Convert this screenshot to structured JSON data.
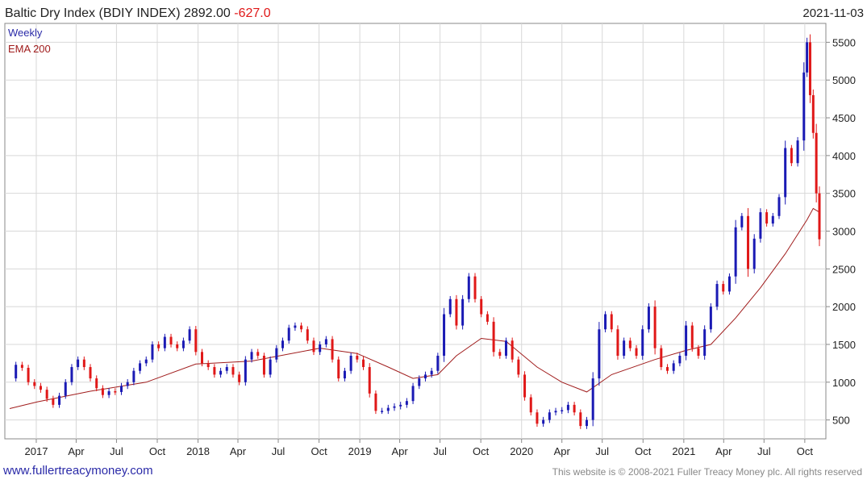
{
  "header": {
    "title": "Baltic Dry Index (BDIY INDEX) 2892.00",
    "change": "-627.0",
    "date": "2021-11-03"
  },
  "legend": {
    "frequency": "Weekly",
    "ema": "EMA 200"
  },
  "footer": {
    "link": "www.fullertreacymoney.com",
    "copyright": "This website is © 2008-2021 Fuller Treacy Money plc. All rights reserved"
  },
  "colors": {
    "up": "#1a1ab4",
    "down": "#e01818",
    "ema": "#a01c1c",
    "grid": "#d8d8d8",
    "legend_weekly": "#2a2aa8",
    "legend_ema": "#a01c1c",
    "change": "#e01818"
  },
  "chart_data": {
    "type": "candlestick",
    "frequency": "weekly",
    "x_start": "2016-11-02",
    "x_end": "2021-11-03",
    "ylim": [
      250,
      5750
    ],
    "grid": true,
    "yticks": [
      500,
      1000,
      1500,
      2000,
      2500,
      3000,
      3500,
      4000,
      4500,
      5000,
      5500
    ],
    "xticks": [
      {
        "label": "2017",
        "date": "2017-01-01"
      },
      {
        "label": "Apr",
        "date": "2017-04-01"
      },
      {
        "label": "Jul",
        "date": "2017-07-01"
      },
      {
        "label": "Oct",
        "date": "2017-10-01"
      },
      {
        "label": "2018",
        "date": "2018-01-01"
      },
      {
        "label": "Apr",
        "date": "2018-04-01"
      },
      {
        "label": "Jul",
        "date": "2018-07-01"
      },
      {
        "label": "Oct",
        "date": "2018-10-01"
      },
      {
        "label": "2019",
        "date": "2019-01-01"
      },
      {
        "label": "Apr",
        "date": "2019-04-01"
      },
      {
        "label": "Jul",
        "date": "2019-07-01"
      },
      {
        "label": "Oct",
        "date": "2019-10-01"
      },
      {
        "label": "2020",
        "date": "2020-01-01"
      },
      {
        "label": "Apr",
        "date": "2020-04-01"
      },
      {
        "label": "Jul",
        "date": "2020-07-01"
      },
      {
        "label": "Oct",
        "date": "2020-10-01"
      },
      {
        "label": "2021",
        "date": "2021-01-01"
      },
      {
        "label": "Apr",
        "date": "2021-04-01"
      },
      {
        "label": "Jul",
        "date": "2021-07-01"
      },
      {
        "label": "Oct",
        "date": "2021-10-01"
      }
    ],
    "weekly_close": [
      {
        "date": "2016-11-02",
        "close": 1050
      },
      {
        "date": "2016-11-16",
        "close": 1230
      },
      {
        "date": "2016-11-30",
        "close": 1190
      },
      {
        "date": "2016-12-14",
        "close": 1000
      },
      {
        "date": "2016-12-28",
        "close": 950
      },
      {
        "date": "2017-01-11",
        "close": 900
      },
      {
        "date": "2017-01-25",
        "close": 780
      },
      {
        "date": "2017-02-08",
        "close": 700
      },
      {
        "date": "2017-02-22",
        "close": 820
      },
      {
        "date": "2017-03-08",
        "close": 1000
      },
      {
        "date": "2017-03-22",
        "close": 1200
      },
      {
        "date": "2017-04-05",
        "close": 1300
      },
      {
        "date": "2017-04-19",
        "close": 1200
      },
      {
        "date": "2017-05-03",
        "close": 1050
      },
      {
        "date": "2017-05-17",
        "close": 920
      },
      {
        "date": "2017-05-31",
        "close": 830
      },
      {
        "date": "2017-06-14",
        "close": 880
      },
      {
        "date": "2017-06-28",
        "close": 870
      },
      {
        "date": "2017-07-12",
        "close": 950
      },
      {
        "date": "2017-07-26",
        "close": 1000
      },
      {
        "date": "2017-08-09",
        "close": 1150
      },
      {
        "date": "2017-08-23",
        "close": 1250
      },
      {
        "date": "2017-09-06",
        "close": 1300
      },
      {
        "date": "2017-09-20",
        "close": 1500
      },
      {
        "date": "2017-10-04",
        "close": 1450
      },
      {
        "date": "2017-10-18",
        "close": 1600
      },
      {
        "date": "2017-11-01",
        "close": 1500
      },
      {
        "date": "2017-11-15",
        "close": 1450
      },
      {
        "date": "2017-11-29",
        "close": 1550
      },
      {
        "date": "2017-12-13",
        "close": 1700
      },
      {
        "date": "2017-12-27",
        "close": 1400
      },
      {
        "date": "2018-01-10",
        "close": 1250
      },
      {
        "date": "2018-01-24",
        "close": 1200
      },
      {
        "date": "2018-02-07",
        "close": 1100
      },
      {
        "date": "2018-02-21",
        "close": 1150
      },
      {
        "date": "2018-03-07",
        "close": 1200
      },
      {
        "date": "2018-03-21",
        "close": 1100
      },
      {
        "date": "2018-04-04",
        "close": 1000
      },
      {
        "date": "2018-04-18",
        "close": 1300
      },
      {
        "date": "2018-05-02",
        "close": 1400
      },
      {
        "date": "2018-05-16",
        "close": 1350
      },
      {
        "date": "2018-05-30",
        "close": 1100
      },
      {
        "date": "2018-06-13",
        "close": 1300
      },
      {
        "date": "2018-06-27",
        "close": 1450
      },
      {
        "date": "2018-07-11",
        "close": 1550
      },
      {
        "date": "2018-07-25",
        "close": 1720
      },
      {
        "date": "2018-08-08",
        "close": 1750
      },
      {
        "date": "2018-08-22",
        "close": 1700
      },
      {
        "date": "2018-09-05",
        "close": 1550
      },
      {
        "date": "2018-09-19",
        "close": 1400
      },
      {
        "date": "2018-10-03",
        "close": 1500
      },
      {
        "date": "2018-10-17",
        "close": 1570
      },
      {
        "date": "2018-10-31",
        "close": 1300
      },
      {
        "date": "2018-11-14",
        "close": 1050
      },
      {
        "date": "2018-11-28",
        "close": 1150
      },
      {
        "date": "2018-12-12",
        "close": 1350
      },
      {
        "date": "2018-12-26",
        "close": 1300
      },
      {
        "date": "2019-01-09",
        "close": 1200
      },
      {
        "date": "2019-01-23",
        "close": 850
      },
      {
        "date": "2019-02-06",
        "close": 620
      },
      {
        "date": "2019-02-20",
        "close": 620
      },
      {
        "date": "2019-03-06",
        "close": 660
      },
      {
        "date": "2019-03-20",
        "close": 680
      },
      {
        "date": "2019-04-03",
        "close": 700
      },
      {
        "date": "2019-04-17",
        "close": 750
      },
      {
        "date": "2019-05-01",
        "close": 950
      },
      {
        "date": "2019-05-15",
        "close": 1050
      },
      {
        "date": "2019-05-29",
        "close": 1100
      },
      {
        "date": "2019-06-12",
        "close": 1150
      },
      {
        "date": "2019-06-26",
        "close": 1350
      },
      {
        "date": "2019-07-10",
        "close": 1900
      },
      {
        "date": "2019-07-24",
        "close": 2100
      },
      {
        "date": "2019-08-07",
        "close": 1750
      },
      {
        "date": "2019-08-21",
        "close": 2100
      },
      {
        "date": "2019-09-04",
        "close": 2400
      },
      {
        "date": "2019-09-18",
        "close": 2100
      },
      {
        "date": "2019-10-02",
        "close": 1900
      },
      {
        "date": "2019-10-16",
        "close": 1800
      },
      {
        "date": "2019-10-30",
        "close": 1400
      },
      {
        "date": "2019-11-13",
        "close": 1350
      },
      {
        "date": "2019-11-27",
        "close": 1550
      },
      {
        "date": "2019-12-11",
        "close": 1300
      },
      {
        "date": "2019-12-25",
        "close": 1100
      },
      {
        "date": "2020-01-08",
        "close": 800
      },
      {
        "date": "2020-01-22",
        "close": 600
      },
      {
        "date": "2020-02-05",
        "close": 450
      },
      {
        "date": "2020-02-19",
        "close": 500
      },
      {
        "date": "2020-03-04",
        "close": 600
      },
      {
        "date": "2020-03-18",
        "close": 620
      },
      {
        "date": "2020-04-01",
        "close": 630
      },
      {
        "date": "2020-04-15",
        "close": 700
      },
      {
        "date": "2020-04-29",
        "close": 600
      },
      {
        "date": "2020-05-13",
        "close": 420
      },
      {
        "date": "2020-05-27",
        "close": 500
      },
      {
        "date": "2020-06-10",
        "close": 1050
      },
      {
        "date": "2020-06-24",
        "close": 1700
      },
      {
        "date": "2020-07-08",
        "close": 1900
      },
      {
        "date": "2020-07-22",
        "close": 1700
      },
      {
        "date": "2020-08-05",
        "close": 1350
      },
      {
        "date": "2020-08-19",
        "close": 1550
      },
      {
        "date": "2020-09-02",
        "close": 1450
      },
      {
        "date": "2020-09-16",
        "close": 1350
      },
      {
        "date": "2020-09-30",
        "close": 1700
      },
      {
        "date": "2020-10-14",
        "close": 2000
      },
      {
        "date": "2020-10-28",
        "close": 1450
      },
      {
        "date": "2020-11-11",
        "close": 1200
      },
      {
        "date": "2020-11-25",
        "close": 1150
      },
      {
        "date": "2020-12-09",
        "close": 1250
      },
      {
        "date": "2020-12-23",
        "close": 1350
      },
      {
        "date": "2021-01-06",
        "close": 1750
      },
      {
        "date": "2021-01-20",
        "close": 1450
      },
      {
        "date": "2021-02-03",
        "close": 1350
      },
      {
        "date": "2021-02-17",
        "close": 1700
      },
      {
        "date": "2021-03-03",
        "close": 2000
      },
      {
        "date": "2021-03-17",
        "close": 2300
      },
      {
        "date": "2021-03-31",
        "close": 2200
      },
      {
        "date": "2021-04-14",
        "close": 2400
      },
      {
        "date": "2021-04-28",
        "close": 3050
      },
      {
        "date": "2021-05-12",
        "close": 3200
      },
      {
        "date": "2021-05-26",
        "close": 2500
      },
      {
        "date": "2021-06-09",
        "close": 2900
      },
      {
        "date": "2021-06-23",
        "close": 3250
      },
      {
        "date": "2021-07-07",
        "close": 3100
      },
      {
        "date": "2021-07-21",
        "close": 3200
      },
      {
        "date": "2021-08-04",
        "close": 3450
      },
      {
        "date": "2021-08-18",
        "close": 4100
      },
      {
        "date": "2021-09-01",
        "close": 3900
      },
      {
        "date": "2021-09-15",
        "close": 4200
      },
      {
        "date": "2021-09-29",
        "close": 5100
      },
      {
        "date": "2021-10-06",
        "close": 5500
      },
      {
        "date": "2021-10-13",
        "close": 4800
      },
      {
        "date": "2021-10-20",
        "close": 4300
      },
      {
        "date": "2021-10-27",
        "close": 3500
      },
      {
        "date": "2021-11-03",
        "close": 2892
      }
    ],
    "ema_200": [
      {
        "date": "2016-11-02",
        "value": 650
      },
      {
        "date": "2017-01-04",
        "value": 740
      },
      {
        "date": "2017-05-03",
        "value": 880
      },
      {
        "date": "2017-09-06",
        "value": 1000
      },
      {
        "date": "2017-12-27",
        "value": 1240
      },
      {
        "date": "2018-05-02",
        "value": 1280
      },
      {
        "date": "2018-10-03",
        "value": 1450
      },
      {
        "date": "2018-12-26",
        "value": 1380
      },
      {
        "date": "2019-03-06",
        "value": 1200
      },
      {
        "date": "2019-05-01",
        "value": 1050
      },
      {
        "date": "2019-06-26",
        "value": 1100
      },
      {
        "date": "2019-08-07",
        "value": 1350
      },
      {
        "date": "2019-10-02",
        "value": 1580
      },
      {
        "date": "2019-11-27",
        "value": 1540
      },
      {
        "date": "2020-02-05",
        "value": 1200
      },
      {
        "date": "2020-04-01",
        "value": 1000
      },
      {
        "date": "2020-05-27",
        "value": 870
      },
      {
        "date": "2020-07-22",
        "value": 1100
      },
      {
        "date": "2020-10-28",
        "value": 1300
      },
      {
        "date": "2021-01-06",
        "value": 1420
      },
      {
        "date": "2021-03-03",
        "value": 1500
      },
      {
        "date": "2021-04-28",
        "value": 1850
      },
      {
        "date": "2021-06-23",
        "value": 2250
      },
      {
        "date": "2021-08-18",
        "value": 2700
      },
      {
        "date": "2021-10-06",
        "value": 3150
      },
      {
        "date": "2021-10-20",
        "value": 3300
      },
      {
        "date": "2021-11-03",
        "value": 3250
      }
    ]
  }
}
